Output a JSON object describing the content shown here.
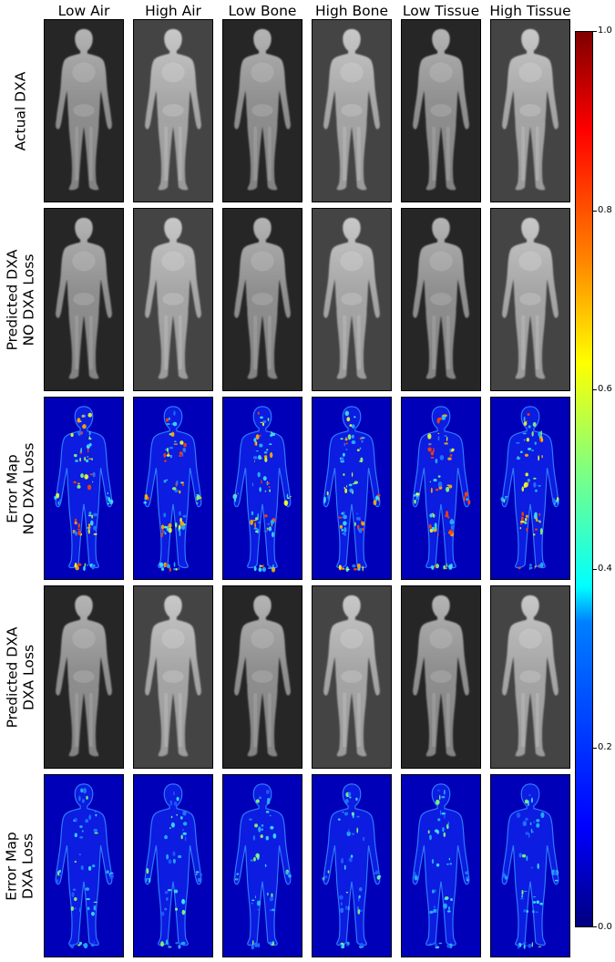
{
  "columns": [
    "Low Air",
    "High Air",
    "Low Bone",
    "High Bone",
    "Low Tissue",
    "High Tissue"
  ],
  "rows": [
    {
      "label_lines": [
        "Actual DXA"
      ],
      "kind": "dxa"
    },
    {
      "label_lines": [
        "Predicted DXA",
        "NO DXA Loss"
      ],
      "kind": "dxa"
    },
    {
      "label_lines": [
        "Error Map",
        "NO DXA Loss"
      ],
      "kind": "error"
    },
    {
      "label_lines": [
        "Predicted DXA",
        "DXA Loss"
      ],
      "kind": "dxa"
    },
    {
      "label_lines": [
        "Error Map",
        "DXA Loss"
      ],
      "kind": "error"
    }
  ],
  "colorbar": {
    "colormap": "jet",
    "ticks": [
      "0.0",
      "0.2",
      "0.4",
      "0.6",
      "0.8",
      "1.0"
    ]
  },
  "column_brightness": [
    "low",
    "high",
    "low",
    "high",
    "low",
    "high"
  ]
}
